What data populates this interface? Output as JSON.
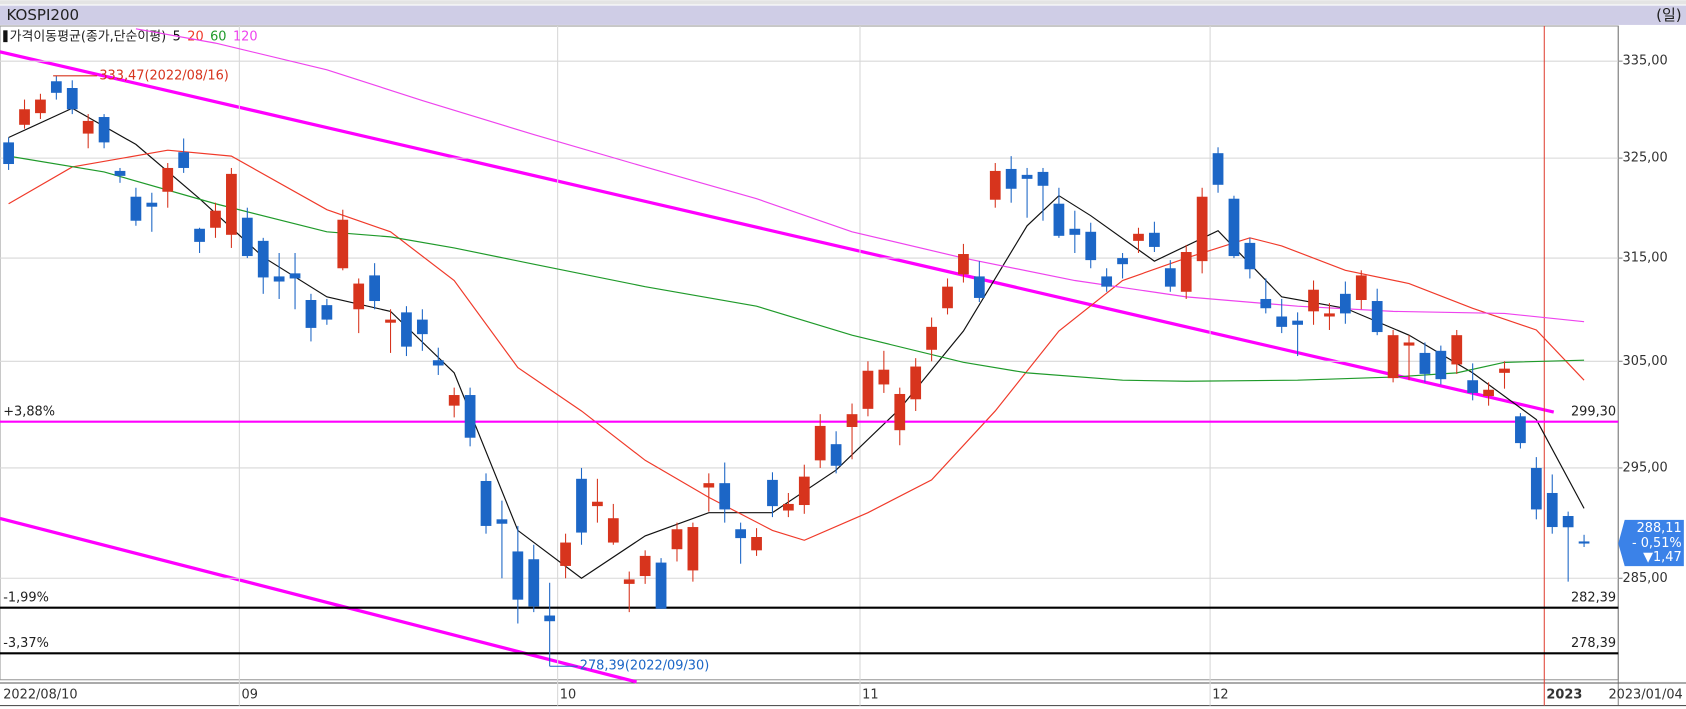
{
  "chart_data": {
    "type": "candlestick",
    "title": "KOSPI200",
    "period": "(일)",
    "legend_title": "가격이동평균(종가,단순이평)",
    "log_scale": true,
    "grid": true,
    "up_color": "#d7341d",
    "down_color": "#1c66c6",
    "categories": [
      "2022/08/10",
      null,
      null,
      null,
      null,
      null,
      null,
      null,
      null,
      null,
      null,
      null,
      null,
      null,
      null,
      "09",
      null,
      null,
      null,
      null,
      null,
      null,
      null,
      null,
      null,
      null,
      null,
      null,
      null,
      null,
      null,
      null,
      null,
      null,
      null,
      "10",
      null,
      null,
      null,
      null,
      null,
      null,
      null,
      null,
      null,
      null,
      null,
      null,
      null,
      null,
      null,
      null,
      null,
      null,
      "11",
      null,
      null,
      null,
      null,
      null,
      null,
      null,
      null,
      null,
      null,
      null,
      null,
      null,
      null,
      null,
      null,
      null,
      null,
      null,
      null,
      null,
      "12",
      null,
      null,
      null,
      null,
      null,
      null,
      null,
      null,
      null,
      null,
      null,
      null,
      null,
      null,
      null,
      null,
      null,
      null,
      null,
      null,
      "2023",
      null,
      "2023/01/04"
    ],
    "open": [
      326.6,
      328.4,
      329.6,
      332.9,
      332.2,
      327.5,
      329.2,
      323.7,
      321.1,
      320.5,
      321.6,
      325.6,
      317.9,
      318.0,
      317.3,
      319.0,
      316.7,
      313.2,
      313.5,
      310.9,
      310.4,
      314.0,
      310.0,
      313.3,
      308.7,
      309.7,
      309.0,
      305.1,
      300.8,
      301.8,
      293.8,
      290.3,
      287.4,
      286.7,
      281.7,
      286.1,
      294.0,
      291.5,
      288.2,
      284.5,
      285.2,
      286.4,
      287.6,
      285.7,
      293.2,
      293.6,
      289.4,
      287.5,
      293.9,
      291.1,
      291.6,
      295.7,
      297.2,
      298.8,
      300.5,
      302.8,
      298.5,
      301.4,
      306.1,
      310.1,
      313.4,
      313.2,
      320.8,
      323.9,
      323.3,
      323.6,
      320.4,
      317.9,
      317.6,
      313.2,
      315.0,
      316.7,
      317.5,
      314.0,
      311.7,
      314.7,
      325.5,
      320.9,
      316.5,
      311.0,
      309.3,
      308.9,
      309.8,
      309.3,
      311.5,
      310.9,
      310.8,
      303.4,
      306.5,
      305.8,
      306.0,
      304.7,
      303.2,
      301.7,
      303.9,
      299.8,
      295.0,
      292.7,
      290.6,
      288.3
    ],
    "high": [
      327.1,
      331.0,
      331.6,
      333.47,
      333.0,
      329.5,
      329.5,
      324.0,
      322.0,
      321.5,
      324.5,
      327.0,
      318.0,
      320.5,
      324.0,
      320.0,
      317.0,
      315.5,
      315.5,
      311.5,
      311.0,
      319.8,
      313.0,
      314.5,
      310.0,
      310.3,
      310.0,
      306.3,
      302.5,
      302.5,
      294.5,
      292.0,
      289.7,
      288.0,
      284.6,
      289.0,
      295.0,
      294.0,
      291.7,
      285.6,
      287.5,
      286.8,
      290.0,
      290.0,
      294.5,
      295.5,
      290.0,
      289.5,
      294.6,
      292.7,
      295.3,
      300.0,
      298.4,
      301.0,
      305.0,
      306.0,
      302.5,
      305.3,
      309.2,
      313.0,
      316.4,
      314.7,
      324.5,
      325.2,
      324.0,
      324.0,
      322.0,
      319.7,
      318.5,
      314.0,
      315.5,
      318.0,
      318.6,
      314.8,
      316.3,
      322.0,
      326.1,
      321.2,
      317.0,
      313.0,
      311.0,
      309.7,
      312.8,
      310.6,
      312.7,
      313.8,
      312.0,
      308.0,
      307.5,
      306.8,
      306.5,
      308.0,
      304.8,
      303.0,
      305.0,
      300.1,
      296.0,
      294.4,
      291.0,
      288.9
    ],
    "low": [
      323.8,
      328.0,
      329.0,
      331.0,
      329.5,
      326.0,
      326.0,
      322.5,
      318.2,
      317.6,
      320.0,
      323.5,
      315.5,
      317.0,
      316.0,
      315.0,
      311.5,
      311.0,
      310.0,
      306.9,
      308.5,
      313.8,
      307.7,
      310.0,
      305.8,
      305.5,
      306.0,
      303.7,
      299.7,
      297.0,
      289.0,
      285.0,
      281.0,
      282.0,
      278.39,
      285.0,
      288.0,
      290.0,
      288.0,
      282.0,
      284.5,
      282.3,
      286.5,
      284.7,
      291.0,
      290.0,
      286.3,
      287.0,
      290.5,
      290.5,
      290.8,
      295.0,
      294.5,
      295.8,
      299.8,
      302.0,
      297.1,
      300.3,
      305.0,
      309.5,
      312.6,
      310.7,
      320.0,
      320.5,
      319.0,
      318.7,
      317.0,
      315.5,
      314.0,
      311.7,
      313.0,
      315.5,
      315.6,
      311.7,
      311.0,
      313.5,
      321.5,
      315.0,
      313.0,
      309.6,
      307.7,
      305.5,
      308.5,
      308.0,
      308.6,
      310.0,
      307.5,
      303.0,
      303.2,
      303.0,
      302.8,
      303.8,
      301.3,
      300.8,
      302.4,
      296.8,
      290.3,
      289.0,
      284.7,
      287.8
    ],
    "close": [
      324.4,
      330.0,
      331.0,
      331.7,
      330.0,
      328.8,
      326.6,
      323.2,
      318.7,
      320.1,
      324.0,
      324.0,
      316.6,
      319.7,
      323.4,
      315.2,
      313.1,
      312.7,
      313.0,
      308.2,
      309.0,
      318.8,
      312.5,
      310.8,
      309.0,
      306.4,
      307.6,
      304.6,
      301.8,
      297.8,
      289.7,
      289.9,
      283.1,
      282.5,
      281.2,
      288.2,
      289.1,
      291.9,
      290.4,
      284.9,
      287.0,
      282.3,
      289.4,
      289.6,
      293.6,
      291.2,
      288.6,
      288.7,
      291.5,
      291.7,
      294.2,
      298.9,
      295.2,
      300.0,
      304.1,
      304.2,
      301.9,
      304.5,
      308.3,
      312.2,
      315.4,
      311.1,
      323.7,
      321.9,
      322.9,
      322.2,
      317.2,
      317.3,
      314.8,
      312.2,
      314.4,
      317.4,
      316.1,
      312.2,
      315.6,
      321.1,
      322.3,
      315.2,
      313.9,
      310.1,
      308.3,
      308.5,
      311.9,
      309.6,
      309.6,
      313.3,
      307.8,
      307.5,
      306.8,
      303.8,
      303.3,
      307.5,
      302.0,
      302.3,
      304.3,
      297.3,
      291.2,
      289.6,
      289.58,
      288.11
    ],
    "moving_averages": [
      {
        "name": "5",
        "color": "#111111",
        "x": [
          0,
          4,
          8,
          12,
          16,
          20,
          24,
          28,
          32,
          36,
          40,
          44,
          48,
          52,
          56,
          60,
          64,
          66,
          68,
          72,
          76,
          80,
          84,
          88,
          92,
          96,
          99
        ],
        "values": [
          327.1,
          330.1,
          326.4,
          320.9,
          315.1,
          311.2,
          309.8,
          303.9,
          289.3,
          285.0,
          288.8,
          290.9,
          290.9,
          294.8,
          300.5,
          307.9,
          318.2,
          321.2,
          319.2,
          314.7,
          317.7,
          311.2,
          310.1,
          307.5,
          303.9,
          299.5,
          291.3
        ]
      },
      {
        "name": "20",
        "color": "#f03a2a",
        "x": [
          0,
          4,
          10,
          14,
          20,
          24,
          28,
          32,
          36,
          40,
          44,
          48,
          50,
          54,
          58,
          62,
          66,
          70,
          74,
          78,
          80,
          84,
          88,
          92,
          96,
          99
        ],
        "values": [
          320.4,
          324.1,
          325.8,
          325.2,
          319.8,
          317.6,
          312.8,
          304.4,
          300.3,
          295.7,
          292.3,
          289.3,
          288.4,
          290.9,
          293.9,
          300.3,
          307.9,
          312.8,
          315.0,
          317.0,
          316.2,
          313.8,
          312.5,
          310.1,
          308.0,
          303.2
        ]
      },
      {
        "name": "60",
        "color": "#1f9a2a",
        "x": [
          0,
          6,
          13,
          20,
          24,
          28,
          33,
          40,
          47,
          53,
          60,
          64,
          70,
          74,
          81,
          87,
          91,
          94,
          99
        ],
        "values": [
          325.2,
          323.6,
          320.4,
          317.6,
          317.1,
          316.0,
          314.4,
          312.2,
          310.3,
          307.5,
          304.9,
          303.9,
          303.2,
          303.1,
          303.2,
          303.5,
          303.9,
          304.9,
          305.1
        ]
      },
      {
        "name": "120",
        "color": "#ee44ee",
        "x": [
          8,
          13,
          20,
          26,
          33,
          40,
          47,
          53,
          60,
          67,
          74,
          81,
          87,
          94,
          99
        ],
        "values": [
          338.4,
          336.9,
          334.1,
          330.9,
          327.4,
          324.1,
          320.9,
          317.6,
          315.0,
          312.8,
          311.2,
          310.3,
          309.8,
          309.6,
          308.8
        ]
      }
    ],
    "ylim": [
      276.1,
      338.7
    ],
    "yticks": [
      {
        "value": 285,
        "label": "285,00"
      },
      {
        "value": 295,
        "label": "295,00"
      },
      {
        "value": 305,
        "label": "305,00"
      },
      {
        "value": 315,
        "label": "315,00"
      },
      {
        "value": 325,
        "label": "325,00"
      },
      {
        "value": 335,
        "label": "335,00"
      }
    ],
    "hlines": [
      {
        "value": 299.3,
        "label": "299,30",
        "pct": "+3,88%",
        "color": "#ff00ff"
      },
      {
        "value": 282.39,
        "label": "282,39",
        "pct": "-1,99%",
        "color": "#000000"
      },
      {
        "value": 278.39,
        "label": "278,39",
        "pct": "-3,37%",
        "color": "#000000"
      }
    ],
    "annotations": {
      "high": "333,47(2022/08/16)",
      "low": "278,39(2022/09/30)"
    },
    "last_price": {
      "label": "288,11",
      "change_pct": "- 0,51%",
      "change": "▼1,47"
    }
  }
}
